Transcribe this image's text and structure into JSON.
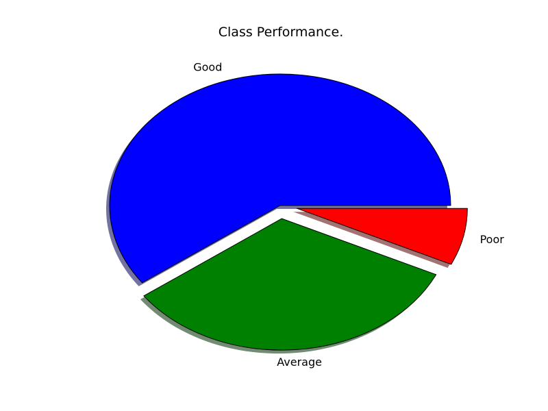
{
  "chart_data": {
    "type": "pie",
    "title": "Class Performance.",
    "labels": [
      "Good",
      "Average",
      "Poor"
    ],
    "values": [
      60,
      33,
      7
    ],
    "colors": [
      "#0000ff",
      "#008000",
      "#ff0000"
    ],
    "explode": [
      0,
      0.1,
      0.1
    ],
    "shadow": true,
    "start_angle_deg": 0,
    "direction": "counterclockwise"
  }
}
